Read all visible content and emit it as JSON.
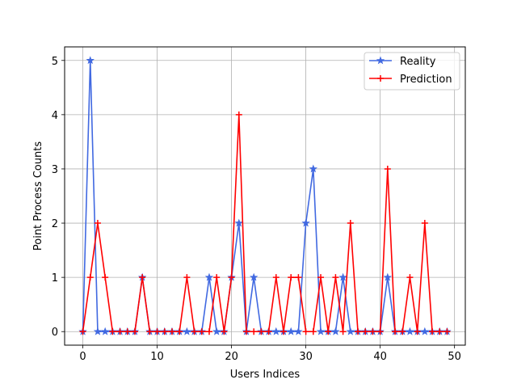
{
  "chart_data": {
    "type": "line",
    "title": "",
    "xlabel": "Users Indices",
    "ylabel": "Point Process Counts",
    "xlim": [
      -2.45,
      51.45
    ],
    "ylim": [
      -0.25,
      5.25
    ],
    "xticks": [
      0,
      10,
      20,
      30,
      40,
      50
    ],
    "yticks": [
      0,
      1,
      2,
      3,
      4,
      5
    ],
    "grid": true,
    "legend_position": "top-right",
    "x": [
      0,
      1,
      2,
      3,
      4,
      5,
      6,
      7,
      8,
      9,
      10,
      11,
      12,
      13,
      14,
      15,
      16,
      17,
      18,
      19,
      20,
      21,
      22,
      23,
      24,
      25,
      26,
      27,
      28,
      29,
      30,
      31,
      32,
      33,
      34,
      35,
      36,
      37,
      38,
      39,
      40,
      41,
      42,
      43,
      44,
      45,
      46,
      47,
      48,
      49
    ],
    "series": [
      {
        "name": "Reality",
        "color": "#4169e1",
        "marker": "star",
        "values": [
          0,
          5,
          0,
          0,
          0,
          0,
          0,
          0,
          1,
          0,
          0,
          0,
          0,
          0,
          0,
          0,
          0,
          1,
          0,
          0,
          1,
          2,
          0,
          1,
          0,
          0,
          0,
          0,
          0,
          0,
          2,
          3,
          0,
          0,
          0,
          1,
          0,
          0,
          0,
          0,
          0,
          1,
          0,
          0,
          0,
          0,
          0,
          0,
          0,
          0
        ]
      },
      {
        "name": "Prediction",
        "color": "#ff0000",
        "marker": "plus",
        "values": [
          0,
          1,
          2,
          1,
          0,
          0,
          0,
          0,
          1,
          0,
          0,
          0,
          0,
          0,
          1,
          0,
          0,
          0,
          1,
          0,
          1,
          4,
          0,
          0,
          0,
          0,
          1,
          0,
          1,
          1,
          0,
          0,
          1,
          0,
          1,
          0,
          2,
          0,
          0,
          0,
          0,
          3,
          0,
          0,
          1,
          0,
          2,
          0,
          0,
          0
        ]
      }
    ]
  }
}
